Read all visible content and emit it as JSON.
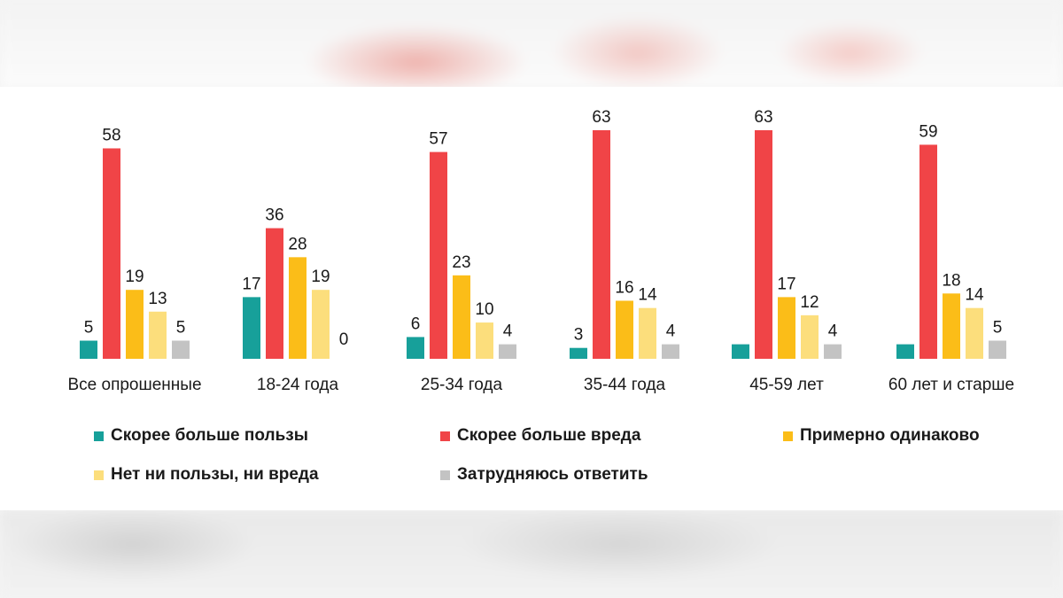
{
  "colors": {
    "series": [
      "#17a09a",
      "#f04447",
      "#fbbd18",
      "#fcde7c",
      "#c3c3c3"
    ],
    "label_text": "#1a1a1a"
  },
  "chart_data": {
    "type": "bar",
    "title": "",
    "xlabel": "",
    "ylabel": "",
    "ylim": [
      0,
      65
    ],
    "grid": false,
    "legend_position": "bottom",
    "categories": [
      "Все опрошенные",
      "18-24 года",
      "25-34 года",
      "35-44 года",
      "45-59 лет",
      "60 лет и старше"
    ],
    "series": [
      {
        "name": "Скорее больше пользы",
        "values": [
          5,
          17,
          6,
          3,
          4,
          4
        ],
        "labels": [
          "5",
          "17",
          "6",
          "3",
          "",
          ""
        ]
      },
      {
        "name": "Скорее больше вреда",
        "values": [
          58,
          36,
          57,
          63,
          63,
          59
        ],
        "labels": [
          "58",
          "36",
          "57",
          "63",
          "63",
          "59"
        ]
      },
      {
        "name": "Примерно одинаково",
        "values": [
          19,
          28,
          23,
          16,
          17,
          18
        ],
        "labels": [
          "19",
          "28",
          "23",
          "16",
          "17",
          "18"
        ]
      },
      {
        "name": "Нет ни пользы, ни вреда",
        "values": [
          13,
          19,
          10,
          14,
          12,
          14
        ],
        "labels": [
          "13",
          "19",
          "10",
          "14",
          "12",
          "14"
        ]
      },
      {
        "name": "Затрудняюсь ответить",
        "values": [
          5,
          0,
          4,
          4,
          4,
          5
        ],
        "labels": [
          "5",
          "0",
          "4",
          "4",
          "4",
          "5"
        ]
      }
    ]
  }
}
